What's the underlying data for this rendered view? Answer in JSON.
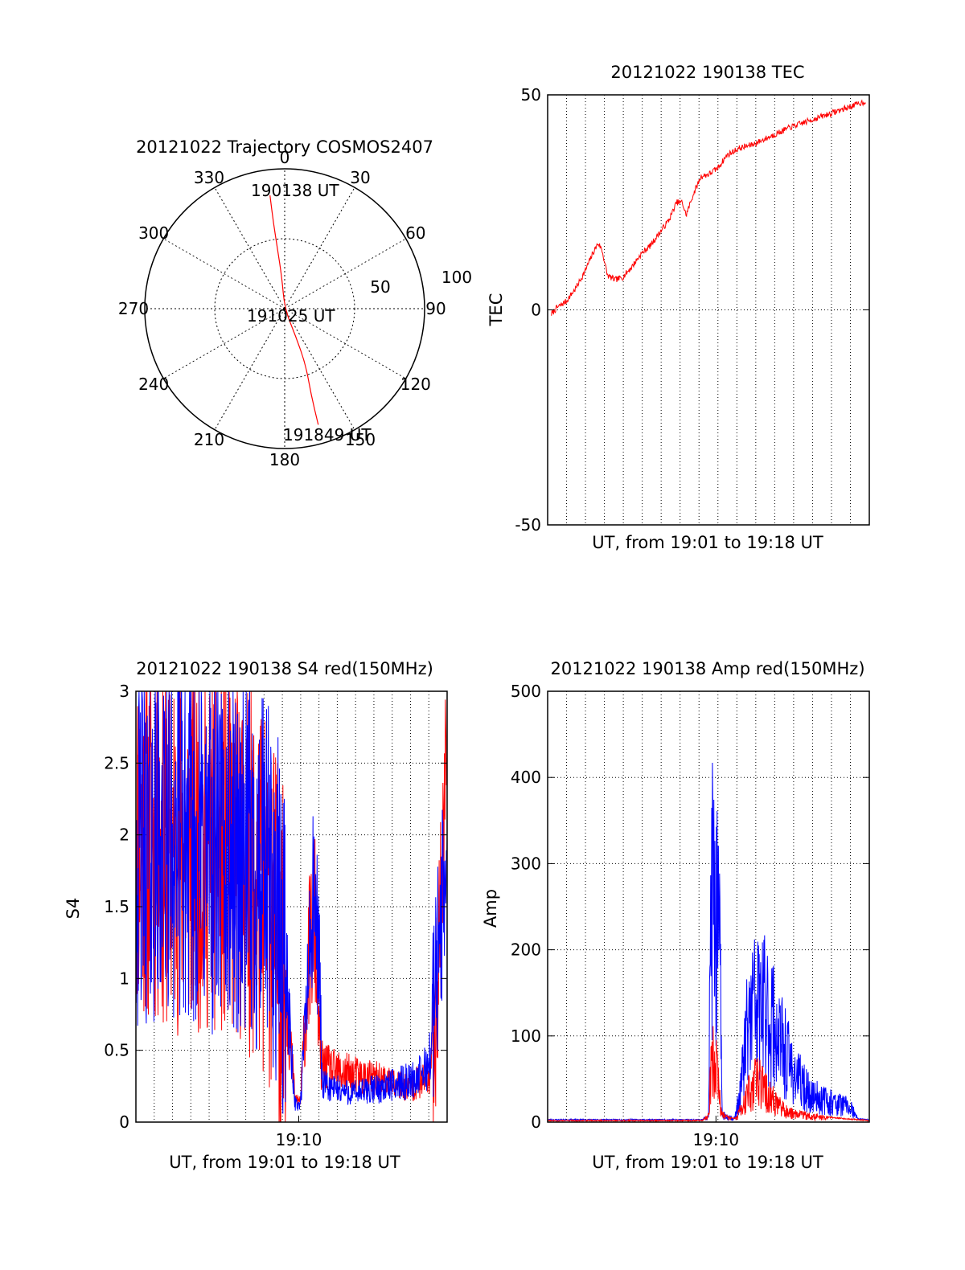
{
  "chart_data": [
    {
      "id": "trajectory",
      "type": "polar",
      "title": "20121022 Trajectory COSMOS2407",
      "azimuth_labels": [
        "0",
        "30",
        "60",
        "90",
        "120",
        "150",
        "180",
        "210",
        "240",
        "270",
        "300",
        "330"
      ],
      "radial_labels": [
        "50",
        "100"
      ],
      "rlim": [
        0,
        100
      ],
      "annotations": [
        "190138 UT",
        "191025 UT",
        "191849 UT"
      ],
      "series": [
        {
          "color": "#ff0000",
          "points": [
            [
              -10.5,
              81
            ],
            [
              -8,
              61
            ],
            [
              -5,
              42
            ],
            [
              -2,
              22
            ],
            [
              0,
              0
            ],
            [
              8,
              -20
            ],
            [
              15,
              -40
            ],
            [
              19,
              -62
            ],
            [
              24,
              -83
            ]
          ]
        }
      ]
    },
    {
      "id": "tec",
      "type": "line",
      "title": "20121022 190138 TEC",
      "xlabel": "UT, from 19:01 to 19:18 UT",
      "ylabel": "TEC",
      "xlim": [
        0,
        17.2
      ],
      "ylim": [
        -50,
        50
      ],
      "yticks": [
        "-50",
        "0",
        "50"
      ],
      "grid": true,
      "series": [
        {
          "color": "#ff0000",
          "points": [
            [
              0.2,
              -1
            ],
            [
              0.5,
              0.5
            ],
            [
              1.0,
              2
            ],
            [
              1.5,
              5
            ],
            [
              2.0,
              9
            ],
            [
              2.4,
              13
            ],
            [
              2.7,
              15.5
            ],
            [
              2.9,
              14
            ],
            [
              3.2,
              8
            ],
            [
              3.6,
              7
            ],
            [
              4.0,
              7.5
            ],
            [
              4.5,
              10
            ],
            [
              5.0,
              13
            ],
            [
              5.5,
              15
            ],
            [
              6.0,
              18
            ],
            [
              6.5,
              21
            ],
            [
              6.9,
              25
            ],
            [
              7.2,
              25
            ],
            [
              7.4,
              22
            ],
            [
              7.8,
              27
            ],
            [
              8.2,
              31
            ],
            [
              8.6,
              31.5
            ],
            [
              9.1,
              33
            ],
            [
              9.6,
              36
            ],
            [
              10.2,
              37.5
            ],
            [
              11.0,
              38.5
            ],
            [
              12.0,
              40.5
            ],
            [
              13.0,
              42.5
            ],
            [
              14.0,
              44
            ],
            [
              15.0,
              45.5
            ],
            [
              16.0,
              47
            ],
            [
              17.0,
              48.5
            ]
          ]
        }
      ]
    },
    {
      "id": "s4",
      "type": "line",
      "title": "20121022 190138 S4 red(150MHz)",
      "xlabel": "UT, from 19:01 to 19:18 UT",
      "ylabel": "S4",
      "xlim": [
        0,
        17.2
      ],
      "ylim": [
        0,
        3
      ],
      "yticks": [
        "0",
        "0.5",
        "1",
        "1.5",
        "2",
        "2.5",
        "3"
      ],
      "xtick_label": "19:10",
      "xtick_value": 9.0,
      "grid": true,
      "series": [
        {
          "color": "#ff0000",
          "profile": [
            [
              0,
              2.0
            ],
            [
              2,
              1.9
            ],
            [
              4,
              1.9
            ],
            [
              6,
              1.8
            ],
            [
              7.5,
              1.5
            ],
            [
              8.2,
              1.0
            ],
            [
              8.5,
              0.6
            ],
            [
              8.8,
              0.15
            ],
            [
              9.1,
              0.15
            ],
            [
              9.3,
              0.6
            ],
            [
              9.6,
              1.2
            ],
            [
              9.9,
              1.4
            ],
            [
              10.2,
              0.4
            ],
            [
              11,
              0.35
            ],
            [
              13,
              0.3
            ],
            [
              15,
              0.25
            ],
            [
              16.2,
              0.3
            ],
            [
              16.6,
              0.8
            ],
            [
              17,
              2.0
            ],
            [
              17.2,
              2.8
            ]
          ]
        },
        {
          "color": "#0000ff",
          "profile": [
            [
              0,
              1.9
            ],
            [
              2,
              2.0
            ],
            [
              4,
              1.9
            ],
            [
              6,
              1.8
            ],
            [
              7.5,
              1.6
            ],
            [
              8.2,
              1.2
            ],
            [
              8.6,
              0.5
            ],
            [
              8.8,
              0.12
            ],
            [
              9.1,
              0.12
            ],
            [
              9.4,
              0.8
            ],
            [
              9.8,
              1.5
            ],
            [
              10.1,
              1.3
            ],
            [
              10.3,
              0.25
            ],
            [
              12,
              0.2
            ],
            [
              14,
              0.25
            ],
            [
              15.5,
              0.3
            ],
            [
              16.2,
              0.4
            ],
            [
              16.7,
              1.2
            ],
            [
              17.2,
              1.9
            ]
          ]
        }
      ]
    },
    {
      "id": "amp",
      "type": "line",
      "title": "20121022 190138 Amp red(150MHz)",
      "xlabel": "UT, from 19:01 to 19:18 UT",
      "ylabel": "Amp",
      "xlim": [
        0,
        17.2
      ],
      "ylim": [
        0,
        500
      ],
      "yticks": [
        "0",
        "100",
        "200",
        "300",
        "400",
        "500"
      ],
      "xtick_label": "19:10",
      "xtick_value": 9.0,
      "grid": true,
      "series": [
        {
          "color": "#0000ff",
          "profile": [
            [
              0,
              2
            ],
            [
              8.3,
              2
            ],
            [
              8.6,
              10
            ],
            [
              8.75,
              330
            ],
            [
              8.9,
              310
            ],
            [
              9.2,
              230
            ],
            [
              9.35,
              10
            ],
            [
              10.0,
              5
            ],
            [
              10.3,
              40
            ],
            [
              10.6,
              120
            ],
            [
              11.0,
              170
            ],
            [
              11.5,
              165
            ],
            [
              12.0,
              150
            ],
            [
              12.5,
              110
            ],
            [
              13.2,
              70
            ],
            [
              14.0,
              40
            ],
            [
              15.0,
              30
            ],
            [
              15.8,
              25
            ],
            [
              16.2,
              20
            ],
            [
              16.6,
              3
            ],
            [
              17.2,
              2
            ]
          ]
        },
        {
          "color": "#ff0000",
          "profile": [
            [
              0,
              1
            ],
            [
              8.3,
              1
            ],
            [
              8.6,
              10
            ],
            [
              8.8,
              95
            ],
            [
              9.0,
              80
            ],
            [
              9.3,
              10
            ],
            [
              10.0,
              3
            ],
            [
              10.4,
              20
            ],
            [
              10.8,
              45
            ],
            [
              11.2,
              60
            ],
            [
              11.6,
              45
            ],
            [
              12.1,
              30
            ],
            [
              12.8,
              15
            ],
            [
              13.5,
              10
            ],
            [
              14.3,
              8
            ],
            [
              15.0,
              5
            ],
            [
              16.0,
              3
            ],
            [
              17.2,
              1
            ]
          ]
        }
      ]
    }
  ]
}
